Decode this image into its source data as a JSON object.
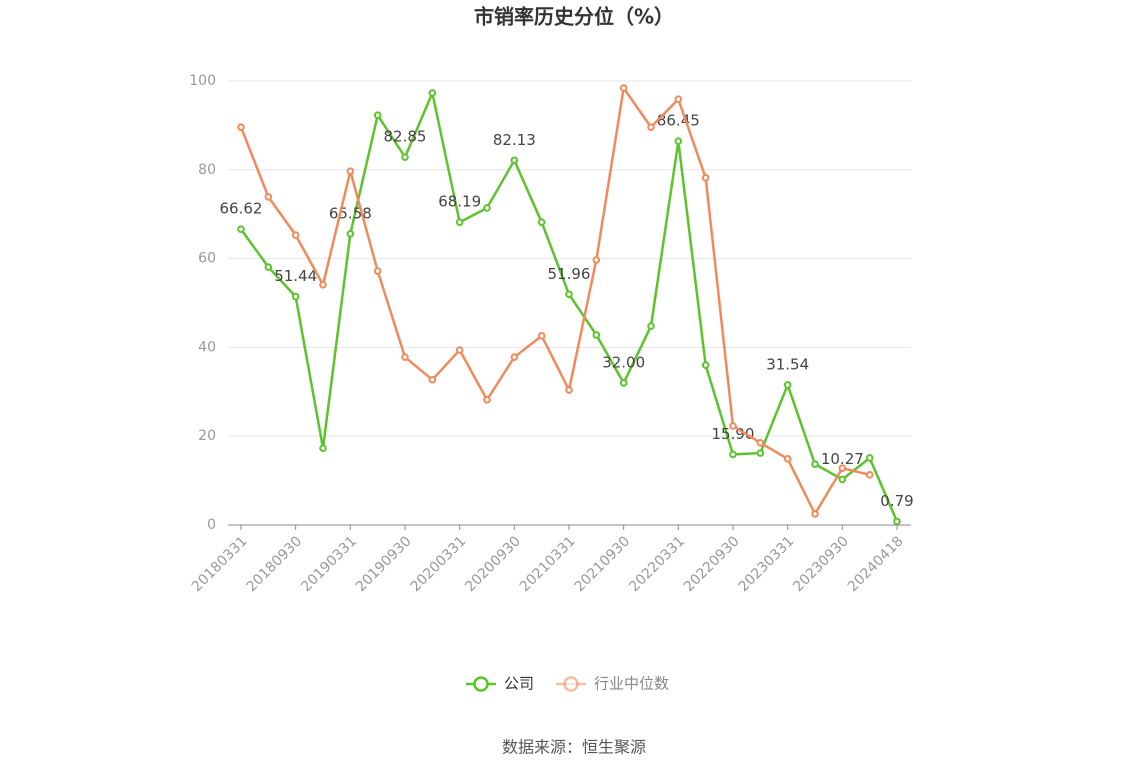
{
  "chart_data": {
    "type": "line",
    "title": "市销率历史分位（%）",
    "categories": [
      "20180331",
      null,
      "20180930",
      null,
      "20190331",
      null,
      "20190930",
      null,
      "20200331",
      null,
      "20200930",
      null,
      "20210331",
      null,
      "20210930",
      null,
      "20220331",
      null,
      "20220930",
      null,
      "20230331",
      null,
      "20230930",
      null,
      "20240418"
    ],
    "series": [
      {
        "name": "公司",
        "color": "#5cc42b",
        "values": [
          66.62,
          58.1,
          51.44,
          17.3,
          65.58,
          92.3,
          82.85,
          97.3,
          68.19,
          71.4,
          82.13,
          68.2,
          51.96,
          42.8,
          32,
          44.8,
          86.45,
          36.0,
          15.9,
          16.2,
          31.54,
          13.7,
          10.27,
          15.1,
          0.79
        ],
        "value_labels": [
          "66.62",
          null,
          "51.44",
          null,
          "65.58",
          null,
          "82.85",
          null,
          "68.19",
          null,
          "82.13",
          null,
          "51.96",
          null,
          "32.00",
          null,
          "86.45",
          null,
          "15.90",
          null,
          "31.54",
          null,
          "10.27",
          null,
          "0.79"
        ]
      },
      {
        "name": "行业中位数",
        "color": "#f08a5a",
        "values": [
          89.6,
          73.9,
          65.3,
          54.1,
          79.7,
          57.2,
          37.8,
          32.7,
          39.4,
          28.2,
          37.8,
          42.6,
          30.4,
          59.7,
          98.4,
          89.6,
          95.9,
          78.2,
          22.3,
          18.5,
          14.9,
          2.5,
          12.8,
          11.3,
          null
        ]
      }
    ],
    "ylim": [
      0,
      100
    ],
    "yticks": [
      0,
      20,
      40,
      60,
      80,
      100
    ],
    "grid": true,
    "legend": "bottom",
    "source": "数据来源：恒生聚源"
  }
}
